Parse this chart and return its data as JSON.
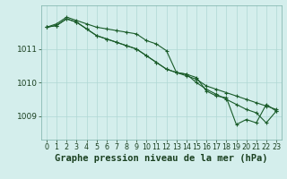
{
  "background_color": "#d4eeec",
  "grid_color": "#b0d8d4",
  "line_color": "#1a5c2a",
  "xlabel": "Graphe pression niveau de la mer (hPa)",
  "xlabel_fontsize": 7.5,
  "ylabel_fontsize": 6.5,
  "tick_fontsize": 5.8,
  "ylim": [
    1008.3,
    1012.3
  ],
  "yticks": [
    1009,
    1010,
    1011
  ],
  "xticks": [
    0,
    1,
    2,
    3,
    4,
    5,
    6,
    7,
    8,
    9,
    10,
    11,
    12,
    13,
    14,
    15,
    16,
    17,
    18,
    19,
    20,
    21,
    22,
    23
  ],
  "line1": [
    1011.65,
    1011.75,
    1011.95,
    1011.85,
    1011.75,
    1011.65,
    1011.6,
    1011.55,
    1011.5,
    1011.45,
    1011.25,
    1011.15,
    1010.95,
    1010.3,
    1010.2,
    1010.1,
    1009.9,
    1009.8,
    1009.7,
    1009.6,
    1009.5,
    1009.4,
    1009.3,
    1009.2
  ],
  "line2": [
    1011.65,
    1011.7,
    1011.9,
    1011.8,
    1011.6,
    1011.4,
    1011.3,
    1011.2,
    1011.1,
    1011.0,
    1010.8,
    1010.6,
    1010.4,
    1010.3,
    1010.25,
    1010.15,
    1009.75,
    1009.6,
    1009.55,
    1008.75,
    1008.9,
    1008.8,
    1009.35,
    1009.15
  ],
  "line3": [
    1011.65,
    1011.7,
    1011.9,
    1011.8,
    1011.6,
    1011.4,
    1011.3,
    1011.2,
    1011.1,
    1011.0,
    1010.8,
    1010.6,
    1010.4,
    1010.3,
    1010.25,
    1010.0,
    1009.8,
    1009.65,
    1009.5,
    1009.35,
    1009.2,
    1009.1,
    1008.8,
    1009.15
  ]
}
